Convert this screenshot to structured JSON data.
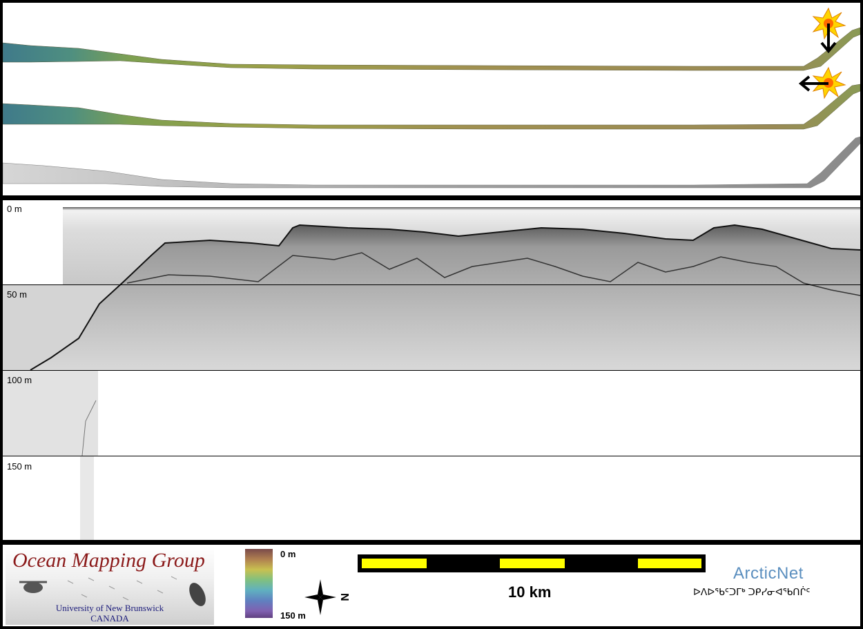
{
  "profile": {
    "depth_labels": [
      "0 m",
      "50 m",
      "100 m",
      "150 m"
    ]
  },
  "footer": {
    "logo_title": "Ocean Mapping Group",
    "logo_university": "University of New Brunswick",
    "logo_country": "CANADA",
    "depth_scale_top": "0 m",
    "depth_scale_bottom": "150 m",
    "compass_letter": "N",
    "scale_label": "10 km",
    "arcticnet_name": "ArcticNet",
    "arcticnet_syllabics": "ᐅᐱᐅᕐᑲᑦᑐᒥᒃ ᑐᑭᓯᓂᐊᕐᑲᑎᒌᑦ"
  },
  "colors": {
    "background": "#000000",
    "panel": "#ffffff",
    "scale_bar_yellow": "#ffff00",
    "logo_red": "#8b1a1a",
    "arcticnet_blue": "#5b8fbf"
  },
  "icons": [
    "sun-marker-icon",
    "arrow-down-icon",
    "arrow-left-icon",
    "north-arrow-icon"
  ]
}
